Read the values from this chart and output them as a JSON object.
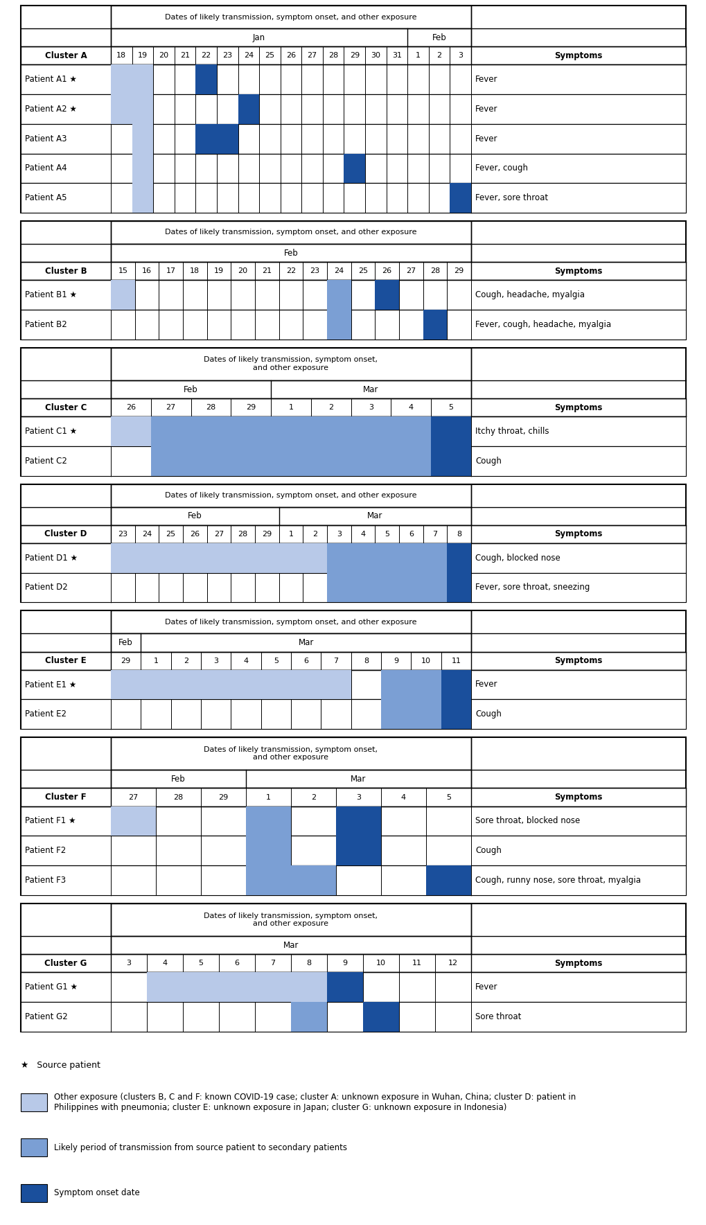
{
  "color_light": "#b8c9e8",
  "color_mid": "#7b9fd4",
  "color_dark": "#1a4f9c",
  "color_border": "#000000",
  "color_bg": "#ffffff",
  "clusters": [
    {
      "name": "Cluster A",
      "header": "Dates of likely transmission, symptom onset, and other exposure",
      "header_lines": 1,
      "months": [
        {
          "name": "Jan",
          "n": 14
        },
        {
          "name": "Feb",
          "n": 3
        }
      ],
      "date_labels": [
        "18",
        "19",
        "20",
        "21",
        "22",
        "23",
        "24",
        "25",
        "26",
        "27",
        "28",
        "29",
        "30",
        "31",
        "1",
        "2",
        "3"
      ],
      "patients": [
        {
          "name": "Patient A1",
          "star": true,
          "light": [
            0,
            1
          ],
          "mid": [],
          "dark": [
            4
          ],
          "symptoms": "Fever"
        },
        {
          "name": "Patient A2",
          "star": true,
          "light": [
            0,
            1
          ],
          "mid": [],
          "dark": [
            6
          ],
          "symptoms": "Fever"
        },
        {
          "name": "Patient A3",
          "star": false,
          "light": [
            1
          ],
          "mid": [],
          "dark": [
            4,
            5
          ],
          "symptoms": "Fever"
        },
        {
          "name": "Patient A4",
          "star": false,
          "light": [
            1
          ],
          "mid": [],
          "dark": [
            11
          ],
          "symptoms": "Fever, cough"
        },
        {
          "name": "Patient A5",
          "star": false,
          "light": [
            1
          ],
          "mid": [],
          "dark": [
            16
          ],
          "symptoms": "Fever, sore throat"
        }
      ]
    },
    {
      "name": "Cluster B",
      "header": "Dates of likely transmission, symptom onset, and other exposure",
      "header_lines": 1,
      "months": [
        {
          "name": "Feb",
          "n": 15
        }
      ],
      "date_labels": [
        "15",
        "16",
        "17",
        "18",
        "19",
        "20",
        "21",
        "22",
        "23",
        "24",
        "25",
        "26",
        "27",
        "28",
        "29"
      ],
      "patients": [
        {
          "name": "Patient B1",
          "star": true,
          "light": [
            0
          ],
          "mid": [
            9
          ],
          "dark": [
            11
          ],
          "symptoms": "Cough, headache, myalgia"
        },
        {
          "name": "Patient B2",
          "star": false,
          "light": [],
          "mid": [
            9
          ],
          "dark": [
            13
          ],
          "symptoms": "Fever, cough, headache, myalgia"
        }
      ]
    },
    {
      "name": "Cluster C",
      "header": "Dates of likely transmission, symptom onset,\nand other exposure",
      "header_lines": 2,
      "months": [
        {
          "name": "Feb",
          "n": 4
        },
        {
          "name": "Mar",
          "n": 5
        }
      ],
      "date_labels": [
        "26",
        "27",
        "28",
        "29",
        "1",
        "2",
        "3",
        "4",
        "5"
      ],
      "patients": [
        {
          "name": "Patient C1",
          "star": true,
          "light": [
            0
          ],
          "mid": [
            1,
            2,
            3,
            4,
            5,
            6,
            7
          ],
          "dark": [
            8
          ],
          "symptoms": "Itchy throat, chills"
        },
        {
          "name": "Patient C2",
          "star": false,
          "light": [],
          "mid": [
            1,
            2,
            3,
            4,
            5,
            6,
            7
          ],
          "dark": [
            8
          ],
          "symptoms": "Cough"
        }
      ]
    },
    {
      "name": "Cluster D",
      "header": "Dates of likely transmission, symptom onset, and other exposure",
      "header_lines": 1,
      "months": [
        {
          "name": "Feb",
          "n": 7
        },
        {
          "name": "Mar",
          "n": 8
        }
      ],
      "date_labels": [
        "23",
        "24",
        "25",
        "26",
        "27",
        "28",
        "29",
        "1",
        "2",
        "3",
        "4",
        "5",
        "6",
        "7",
        "8"
      ],
      "patients": [
        {
          "name": "Patient D1",
          "star": true,
          "light": [
            0,
            1,
            2,
            3,
            4,
            5,
            6,
            7,
            8
          ],
          "mid": [
            9,
            10,
            11,
            12,
            13
          ],
          "dark": [
            14
          ],
          "symptoms": "Cough, blocked nose"
        },
        {
          "name": "Patient D2",
          "star": false,
          "light": [],
          "mid": [
            9,
            10,
            11,
            12,
            13
          ],
          "dark": [
            14
          ],
          "symptoms": "Fever, sore throat, sneezing"
        }
      ]
    },
    {
      "name": "Cluster E",
      "header": "Dates of likely transmission, symptom onset, and other exposure",
      "header_lines": 1,
      "months": [
        {
          "name": "Feb",
          "n": 1
        },
        {
          "name": "Mar",
          "n": 11
        }
      ],
      "date_labels": [
        "29",
        "1",
        "2",
        "3",
        "4",
        "5",
        "6",
        "7",
        "8",
        "9",
        "10",
        "11"
      ],
      "patients": [
        {
          "name": "Patient E1",
          "star": true,
          "light": [
            0,
            1,
            2,
            3,
            4,
            5,
            6,
            7
          ],
          "mid": [
            9,
            10
          ],
          "dark": [
            11
          ],
          "symptoms": "Fever"
        },
        {
          "name": "Patient E2",
          "star": false,
          "light": [],
          "mid": [
            9,
            10
          ],
          "dark": [
            11
          ],
          "symptoms": "Cough"
        }
      ]
    },
    {
      "name": "Cluster F",
      "header": "Dates of likely transmission, symptom onset,\nand other exposure",
      "header_lines": 2,
      "months": [
        {
          "name": "Feb",
          "n": 3
        },
        {
          "name": "Mar",
          "n": 5
        }
      ],
      "date_labels": [
        "27",
        "28",
        "29",
        "1",
        "2",
        "3",
        "4",
        "5"
      ],
      "patients": [
        {
          "name": "Patient F1",
          "star": true,
          "light": [
            0
          ],
          "mid": [
            3
          ],
          "dark": [
            5
          ],
          "symptoms": "Sore throat, blocked nose"
        },
        {
          "name": "Patient F2",
          "star": false,
          "light": [],
          "mid": [
            3
          ],
          "dark": [
            5
          ],
          "symptoms": "Cough"
        },
        {
          "name": "Patient F3",
          "star": false,
          "light": [],
          "mid": [
            3,
            4
          ],
          "dark": [
            7
          ],
          "symptoms": "Cough, runny nose, sore throat, myalgia"
        }
      ]
    },
    {
      "name": "Cluster G",
      "header": "Dates of likely transmission, symptom onset,\nand other exposure",
      "header_lines": 2,
      "months": [
        {
          "name": "Mar",
          "n": 10
        }
      ],
      "date_labels": [
        "3",
        "4",
        "5",
        "6",
        "7",
        "8",
        "9",
        "10",
        "11",
        "12"
      ],
      "patients": [
        {
          "name": "Patient G1",
          "star": true,
          "light": [
            1,
            2,
            3,
            4,
            5
          ],
          "mid": [
            6
          ],
          "dark": [
            6
          ],
          "symptoms": "Fever"
        },
        {
          "name": "Patient G2",
          "star": false,
          "light": [],
          "mid": [
            5
          ],
          "dark": [
            7
          ],
          "symptoms": "Sore throat"
        }
      ]
    }
  ],
  "legend_items": [
    {
      "color": "#b8c9e8",
      "label": "Other exposure (clusters B, C and F: known COVID-19 case; cluster A: unknown exposure in Wuhan, China; cluster D: patient in\nPhilippines with pneumonia; cluster E: unknown exposure in Japan; cluster G: unknown exposure in Indonesia)"
    },
    {
      "color": "#7b9fd4",
      "label": "Likely period of transmission from source patient to secondary patients"
    },
    {
      "color": "#1a4f9c",
      "label": "Symptom onset date"
    }
  ]
}
